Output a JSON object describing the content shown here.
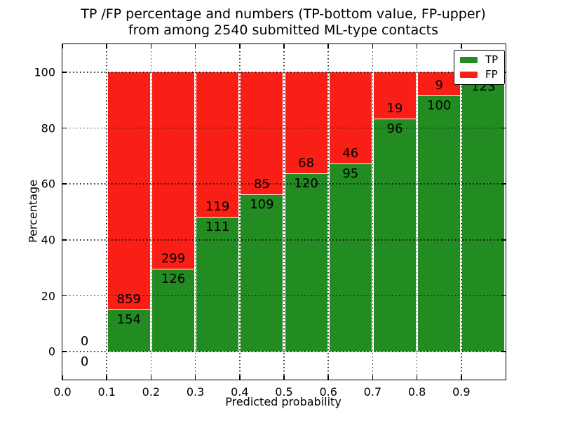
{
  "chart_data": {
    "type": "bar",
    "stacked": true,
    "title_line1": "TP /FP percentage and numbers (TP-bottom value, FP-upper)",
    "title_line2": "from among 2540 submitted ML-type contacts",
    "xlabel": "Predicted probability",
    "ylabel": "Percentage",
    "xlim": [
      0.0,
      1.0
    ],
    "ylim": [
      -10,
      110
    ],
    "grid": "dotted",
    "x_tick_values": [
      0.0,
      0.1,
      0.2,
      0.3,
      0.4,
      0.5,
      0.6,
      0.7,
      0.8,
      0.9
    ],
    "x_tick_labels": [
      "0.0",
      "0.1",
      "0.2",
      "0.3",
      "0.4",
      "0.5",
      "0.6",
      "0.7",
      "0.8",
      "0.9"
    ],
    "y_tick_values": [
      0,
      20,
      40,
      60,
      80,
      100
    ],
    "y_tick_labels": [
      "0",
      "20",
      "40",
      "60",
      "80",
      "100"
    ],
    "colors": {
      "tp": "#228b22",
      "fp": "#fa1f16"
    },
    "legend": {
      "position": "upper-right",
      "entries": [
        {
          "label": "TP",
          "color": "#228b22"
        },
        {
          "label": "FP",
          "color": "#fa1f16"
        }
      ]
    },
    "bins": [
      {
        "range": "0.0-0.1",
        "x_start": 0.0,
        "x_end": 0.1,
        "tp_count": 0,
        "fp_count": 0,
        "tp_pct": 0,
        "fp_pct": 0,
        "tp_label": "0",
        "fp_label": "0"
      },
      {
        "range": "0.1-0.2",
        "x_start": 0.1,
        "x_end": 0.2,
        "tp_count": 154,
        "fp_count": 859,
        "tp_pct": 15.2,
        "fp_pct": 84.8,
        "tp_label": "154",
        "fp_label": "859"
      },
      {
        "range": "0.2-0.3",
        "x_start": 0.2,
        "x_end": 0.3,
        "tp_count": 126,
        "fp_count": 299,
        "tp_pct": 29.6,
        "fp_pct": 70.4,
        "tp_label": "126",
        "fp_label": "299"
      },
      {
        "range": "0.3-0.4",
        "x_start": 0.3,
        "x_end": 0.4,
        "tp_count": 111,
        "fp_count": 119,
        "tp_pct": 48.3,
        "fp_pct": 51.7,
        "tp_label": "111",
        "fp_label": "119"
      },
      {
        "range": "0.4-0.5",
        "x_start": 0.4,
        "x_end": 0.5,
        "tp_count": 109,
        "fp_count": 85,
        "tp_pct": 56.2,
        "fp_pct": 43.8,
        "tp_label": "109",
        "fp_label": "85"
      },
      {
        "range": "0.5-0.6",
        "x_start": 0.5,
        "x_end": 0.6,
        "tp_count": 120,
        "fp_count": 68,
        "tp_pct": 63.8,
        "fp_pct": 36.2,
        "tp_label": "120",
        "fp_label": "68"
      },
      {
        "range": "0.6-0.7",
        "x_start": 0.6,
        "x_end": 0.7,
        "tp_count": 95,
        "fp_count": 46,
        "tp_pct": 67.4,
        "fp_pct": 32.6,
        "tp_label": "95",
        "fp_label": "46"
      },
      {
        "range": "0.7-0.8",
        "x_start": 0.7,
        "x_end": 0.8,
        "tp_count": 96,
        "fp_count": 19,
        "tp_pct": 83.5,
        "fp_pct": 16.5,
        "tp_label": "96",
        "fp_label": "19"
      },
      {
        "range": "0.8-0.9",
        "x_start": 0.8,
        "x_end": 0.9,
        "tp_count": 100,
        "fp_count": 9,
        "tp_pct": 91.7,
        "fp_pct": 8.3,
        "tp_label": "100",
        "fp_label": "9"
      },
      {
        "range": "0.9-1.0",
        "x_start": 0.9,
        "x_end": 1.0,
        "tp_count": 123,
        "fp_count": null,
        "tp_pct": 98.4,
        "fp_pct": 1.6,
        "tp_label": "123",
        "fp_label": ""
      }
    ]
  }
}
